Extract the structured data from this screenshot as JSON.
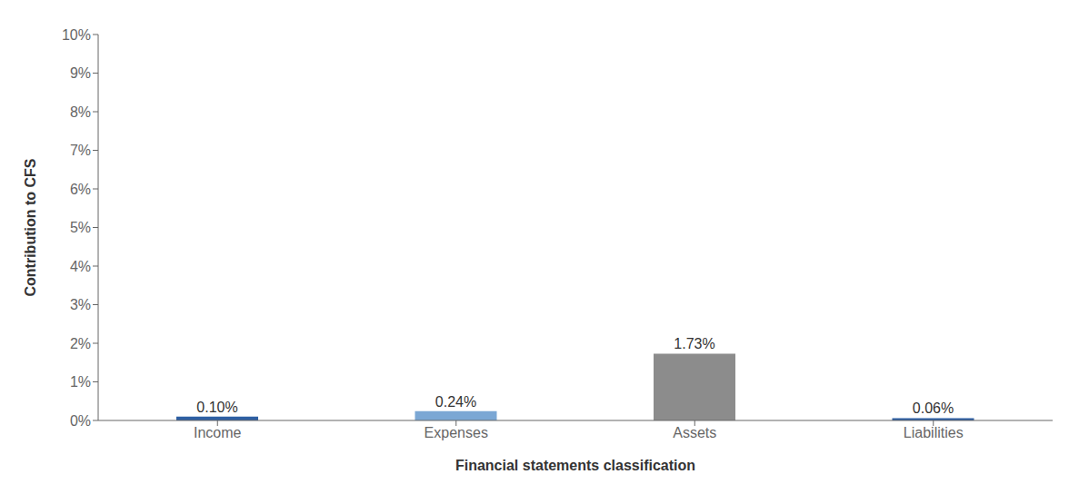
{
  "chart_data": {
    "type": "bar",
    "categories": [
      "Income",
      "Expenses",
      "Assets",
      "Liabilities"
    ],
    "values": [
      0.1,
      0.24,
      1.73,
      0.06
    ],
    "value_labels": [
      "0.10%",
      "0.24%",
      "1.73%",
      "0.06%"
    ],
    "colors": [
      "#2E5FA3",
      "#7BA7D4",
      "#8C8C8C",
      "#2E5FA3"
    ],
    "xlabel": "Financial statements classification",
    "ylabel": "Contribution to CFS",
    "ylim": [
      0,
      10
    ],
    "yticks": [
      {
        "value": 0,
        "label": "0%"
      },
      {
        "value": 1,
        "label": "1%"
      },
      {
        "value": 2,
        "label": "2%"
      },
      {
        "value": 3,
        "label": "3%"
      },
      {
        "value": 4,
        "label": "4%"
      },
      {
        "value": 5,
        "label": "5%"
      },
      {
        "value": 6,
        "label": "6%"
      },
      {
        "value": 7,
        "label": "7%"
      },
      {
        "value": 8,
        "label": "8%"
      },
      {
        "value": 9,
        "label": "9%"
      },
      {
        "value": 10,
        "label": "10%"
      }
    ],
    "grid": false,
    "data_labels": true
  }
}
